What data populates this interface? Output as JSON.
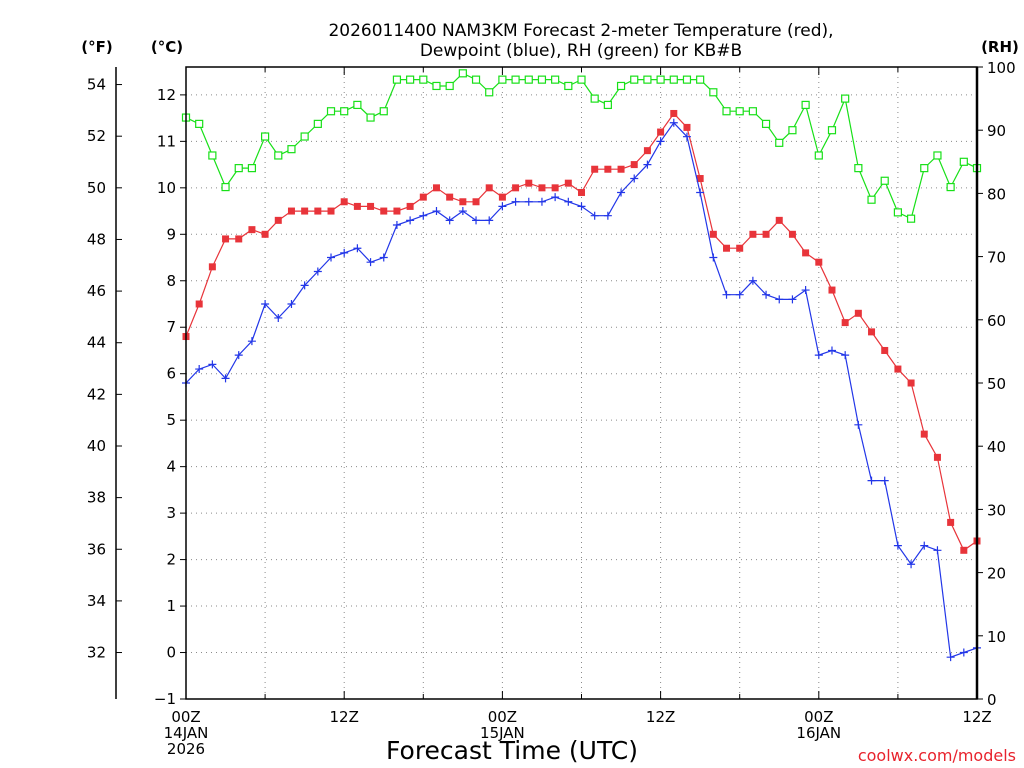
{
  "chart_data": {
    "type": "line",
    "title_line1": "2026011400 NAM3KM Forecast 2-meter Temperature (red),",
    "title_line2": "Dewpoint (blue), RH (green) for KB#B",
    "xlabel": "Forecast Time (UTC)",
    "credit": "coolwx.com/models",
    "units": {
      "fahrenheit": "(°F)",
      "celsius": "(°C)",
      "rh": "(RH)"
    },
    "xlim": [
      0,
      60
    ],
    "ylim_c": [
      -1,
      12.6
    ],
    "ylim_rh": [
      0,
      100
    ],
    "x_ticks": [
      {
        "hour": 0,
        "lines": [
          "00Z",
          "14JAN",
          "2026"
        ]
      },
      {
        "hour": 12,
        "lines": [
          "12Z"
        ]
      },
      {
        "hour": 24,
        "lines": [
          "00Z",
          "15JAN"
        ]
      },
      {
        "hour": 36,
        "lines": [
          "12Z"
        ]
      },
      {
        "hour": 48,
        "lines": [
          "00Z",
          "16JAN"
        ]
      },
      {
        "hour": 60,
        "lines": [
          "12Z"
        ]
      }
    ],
    "c_ticks": [
      -1,
      0,
      1,
      2,
      3,
      4,
      5,
      6,
      7,
      8,
      9,
      10,
      11,
      12
    ],
    "f_ticks": [
      32,
      34,
      36,
      38,
      40,
      42,
      44,
      46,
      48,
      50,
      52,
      54
    ],
    "rh_ticks": [
      0,
      10,
      20,
      30,
      40,
      50,
      60,
      70,
      80,
      90,
      100
    ],
    "series": [
      {
        "name": "Temperature",
        "axis": "celsius",
        "color": "#e8343a",
        "marker": "filled-square",
        "values": [
          6.8,
          7.5,
          8.3,
          8.9,
          8.9,
          9.1,
          9.0,
          9.3,
          9.5,
          9.5,
          9.5,
          9.5,
          9.7,
          9.6,
          9.6,
          9.5,
          9.5,
          9.6,
          9.8,
          10.0,
          9.8,
          9.7,
          9.7,
          10.0,
          9.8,
          10.0,
          10.1,
          10.0,
          10.0,
          10.1,
          9.9,
          10.4,
          10.4,
          10.4,
          10.5,
          10.8,
          11.2,
          11.6,
          11.3,
          10.2,
          9.0,
          8.7,
          8.7,
          9.0,
          9.0,
          9.3,
          9.0,
          8.6,
          8.4,
          7.8,
          7.1,
          7.3,
          6.9,
          6.5,
          6.1,
          5.8,
          4.7,
          4.2,
          2.8,
          2.2,
          2.4
        ]
      },
      {
        "name": "Dewpoint",
        "axis": "celsius",
        "color": "#2236e8",
        "marker": "plus",
        "values": [
          5.8,
          6.1,
          6.2,
          5.9,
          6.4,
          6.7,
          7.5,
          7.2,
          7.5,
          7.9,
          8.2,
          8.5,
          8.6,
          8.7,
          8.4,
          8.5,
          9.2,
          9.3,
          9.4,
          9.5,
          9.3,
          9.5,
          9.3,
          9.3,
          9.6,
          9.7,
          9.7,
          9.7,
          9.8,
          9.7,
          9.6,
          9.4,
          9.4,
          9.9,
          10.2,
          10.5,
          11.0,
          11.4,
          11.1,
          9.9,
          8.5,
          7.7,
          7.7,
          8.0,
          7.7,
          7.6,
          7.6,
          7.8,
          6.4,
          6.5,
          6.4,
          4.9,
          3.7,
          3.7,
          2.3,
          1.9,
          2.3,
          2.2,
          -0.1,
          0.0,
          0.1
        ]
      },
      {
        "name": "RH",
        "axis": "rh",
        "color": "#18e018",
        "marker": "open-square",
        "values": [
          92,
          91,
          86,
          81,
          84,
          84,
          89,
          86,
          87,
          89,
          91,
          93,
          93,
          94,
          92,
          93,
          98,
          98,
          98,
          97,
          97,
          99,
          98,
          96,
          98,
          98,
          98,
          98,
          98,
          97,
          98,
          95,
          94,
          97,
          98,
          98,
          98,
          98,
          98,
          98,
          96,
          93,
          93,
          93,
          91,
          88,
          90,
          94,
          86,
          90,
          95,
          84,
          79,
          82,
          77,
          76,
          84,
          86,
          81,
          85,
          84
        ]
      }
    ]
  }
}
